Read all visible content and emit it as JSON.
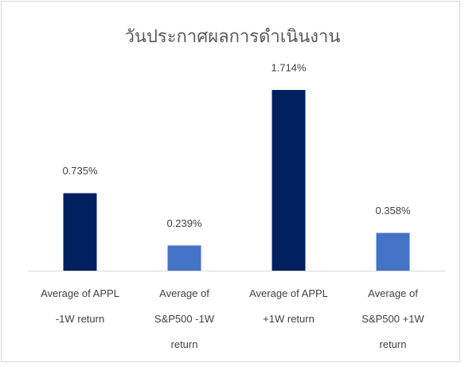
{
  "chart_data": {
    "type": "bar",
    "title": "วันประกาศผลการดำเนินงาน",
    "categories": [
      "Average of APPL -1W return",
      "Average of S&P500 -1W return",
      "Average of APPL +1W return",
      "Average of S&P500 +1W return"
    ],
    "values": [
      0.735,
      0.239,
      1.714,
      0.358
    ],
    "value_labels": [
      "0.735%",
      "0.239%",
      "1.714%",
      "0.358%"
    ],
    "colors": [
      "#002060",
      "#4472c4",
      "#002060",
      "#4472c4"
    ]
  }
}
